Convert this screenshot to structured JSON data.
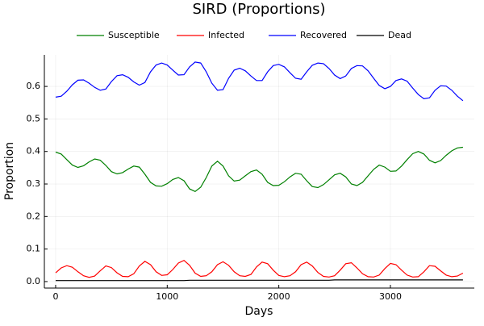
{
  "chart_data": {
    "type": "line",
    "title": "SIRD (Proportions)",
    "x_label": "Days",
    "y_label": "Proportion",
    "x": [
      0,
      50,
      100,
      150,
      200,
      250,
      300,
      350,
      400,
      450,
      500,
      550,
      600,
      650,
      700,
      750,
      800,
      850,
      900,
      950,
      1000,
      1050,
      1100,
      1150,
      1200,
      1250,
      1300,
      1350,
      1400,
      1450,
      1500,
      1550,
      1600,
      1650,
      1700,
      1750,
      1800,
      1850,
      1900,
      1950,
      2000,
      2050,
      2100,
      2150,
      2200,
      2250,
      2300,
      2350,
      2400,
      2450,
      2500,
      2550,
      2600,
      2650,
      2700,
      2750,
      2800,
      2850,
      2900,
      2950,
      3000,
      3050,
      3100,
      3150,
      3200,
      3250,
      3300,
      3350,
      3400,
      3450,
      3500,
      3550,
      3600,
      3650
    ],
    "series": [
      {
        "name": "Susceptible",
        "color": "#008000",
        "values": [
          0.398,
          0.392,
          0.375,
          0.358,
          0.351,
          0.356,
          0.368,
          0.377,
          0.373,
          0.357,
          0.338,
          0.331,
          0.335,
          0.346,
          0.355,
          0.352,
          0.33,
          0.305,
          0.294,
          0.293,
          0.301,
          0.314,
          0.32,
          0.31,
          0.285,
          0.277,
          0.29,
          0.32,
          0.355,
          0.37,
          0.355,
          0.325,
          0.309,
          0.312,
          0.325,
          0.338,
          0.343,
          0.33,
          0.305,
          0.295,
          0.296,
          0.307,
          0.322,
          0.333,
          0.33,
          0.31,
          0.292,
          0.289,
          0.298,
          0.313,
          0.328,
          0.333,
          0.322,
          0.3,
          0.295,
          0.305,
          0.325,
          0.345,
          0.358,
          0.352,
          0.339,
          0.34,
          0.355,
          0.375,
          0.393,
          0.4,
          0.392,
          0.373,
          0.365,
          0.372,
          0.388,
          0.402,
          0.411,
          0.413
        ]
      },
      {
        "name": "Infected",
        "color": "#ff0000",
        "values": [
          0.027,
          0.042,
          0.049,
          0.044,
          0.03,
          0.018,
          0.013,
          0.017,
          0.033,
          0.048,
          0.043,
          0.027,
          0.016,
          0.015,
          0.024,
          0.048,
          0.062,
          0.052,
          0.03,
          0.019,
          0.021,
          0.037,
          0.057,
          0.065,
          0.05,
          0.026,
          0.016,
          0.018,
          0.03,
          0.052,
          0.061,
          0.05,
          0.03,
          0.018,
          0.016,
          0.022,
          0.045,
          0.06,
          0.055,
          0.035,
          0.019,
          0.015,
          0.018,
          0.03,
          0.052,
          0.06,
          0.048,
          0.028,
          0.016,
          0.014,
          0.018,
          0.035,
          0.055,
          0.058,
          0.042,
          0.024,
          0.015,
          0.014,
          0.02,
          0.04,
          0.056,
          0.052,
          0.035,
          0.02,
          0.014,
          0.015,
          0.03,
          0.049,
          0.047,
          0.033,
          0.02,
          0.015,
          0.017,
          0.026
        ]
      },
      {
        "name": "Recovered",
        "color": "#0000ff",
        "values": [
          0.567,
          0.57,
          0.585,
          0.605,
          0.619,
          0.62,
          0.61,
          0.597,
          0.588,
          0.592,
          0.615,
          0.633,
          0.636,
          0.628,
          0.614,
          0.604,
          0.612,
          0.645,
          0.666,
          0.672,
          0.666,
          0.65,
          0.635,
          0.636,
          0.66,
          0.675,
          0.672,
          0.645,
          0.61,
          0.588,
          0.59,
          0.625,
          0.65,
          0.656,
          0.648,
          0.632,
          0.618,
          0.618,
          0.645,
          0.664,
          0.668,
          0.66,
          0.642,
          0.625,
          0.622,
          0.645,
          0.665,
          0.672,
          0.67,
          0.655,
          0.635,
          0.624,
          0.632,
          0.655,
          0.664,
          0.663,
          0.648,
          0.625,
          0.603,
          0.593,
          0.6,
          0.618,
          0.623,
          0.616,
          0.595,
          0.575,
          0.562,
          0.565,
          0.588,
          0.602,
          0.601,
          0.588,
          0.57,
          0.556
        ]
      },
      {
        "name": "Dead",
        "color": "#000000",
        "values": [
          0.003,
          0.003,
          0.003,
          0.003,
          0.003,
          0.003,
          0.003,
          0.003,
          0.003,
          0.003,
          0.003,
          0.003,
          0.003,
          0.003,
          0.003,
          0.003,
          0.003,
          0.003,
          0.003,
          0.003,
          0.003,
          0.003,
          0.003,
          0.003,
          0.004,
          0.004,
          0.004,
          0.004,
          0.004,
          0.004,
          0.004,
          0.004,
          0.004,
          0.004,
          0.004,
          0.004,
          0.004,
          0.004,
          0.004,
          0.004,
          0.004,
          0.004,
          0.004,
          0.004,
          0.004,
          0.004,
          0.004,
          0.004,
          0.004,
          0.004,
          0.005,
          0.005,
          0.005,
          0.005,
          0.005,
          0.005,
          0.005,
          0.005,
          0.005,
          0.005,
          0.005,
          0.005,
          0.005,
          0.005,
          0.005,
          0.005,
          0.005,
          0.005,
          0.005,
          0.005,
          0.005,
          0.005,
          0.005,
          0.005
        ]
      }
    ],
    "xlim": [
      -101,
      3752
    ],
    "ylim": [
      -0.02,
      0.697
    ],
    "xticks": [
      0,
      1000,
      2000,
      3000
    ],
    "yticks": [
      {
        "value": 0,
        "label": "0.0"
      },
      0.1,
      0.2,
      0.3,
      0.4,
      0.5,
      0.6
    ],
    "grid": true,
    "legend": "top"
  }
}
